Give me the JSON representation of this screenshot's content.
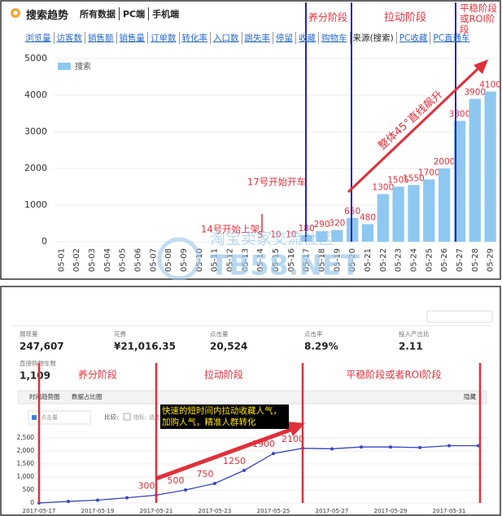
{
  "top_header": {
    "title": "搜索趋势",
    "links": [
      "所有数据",
      "PC端",
      "手机端"
    ]
  },
  "top_tabs": {
    "items": [
      "浏览量",
      "访客数",
      "销售额",
      "销售量",
      "订单数",
      "转化率",
      "入口数",
      "跳失率",
      "停留",
      "收藏",
      "购物车",
      "来源(搜索)",
      "PC收藏",
      "PC直通车"
    ],
    "selected": 11
  },
  "chart_data": [
    {
      "type": "bar",
      "categories": [
        "05-01",
        "05-02",
        "05-03",
        "05-04",
        "05-05",
        "05-06",
        "05-07",
        "05-08",
        "05-09",
        "05-10",
        "05-11",
        "05-12",
        "05-13",
        "05-14",
        "05-15",
        "05-16",
        "05-17",
        "05-18",
        "05-19",
        "05-20",
        "05-21",
        "05-22",
        "05-23",
        "05-24",
        "05-25",
        "05-26",
        "05-27",
        "05-28",
        "05-29"
      ],
      "series": [
        {
          "name": "搜索",
          "color": "#8ec8f0",
          "values": [
            0,
            0,
            0,
            0,
            0,
            0,
            0,
            0,
            0,
            0,
            0,
            0,
            0,
            5,
            10,
            10,
            180,
            290,
            320,
            650,
            480,
            1300,
            1505,
            1550,
            1700,
            2000,
            3300,
            3900,
            4100
          ]
        }
      ],
      "ylim": [
        0,
        5000
      ],
      "yticks": [
        0,
        1000,
        2000,
        3000,
        4000,
        5000
      ],
      "grid": true,
      "legend": "top-left",
      "phases": [
        "养分阶段",
        "拉动阶段",
        "平稳阶段或ROI阶段"
      ],
      "annotations": [
        "整体45°直线飙升",
        "17号开始开车",
        "14号开始上架"
      ]
    },
    {
      "type": "line",
      "categories": [
        "2017-05-17",
        null,
        "2017-05-19",
        null,
        "2017-05-21",
        null,
        "2017-05-23",
        null,
        "2017-05-25",
        null,
        "2017-05-27",
        null,
        "2017-05-29",
        null,
        "2017-05-31",
        null
      ],
      "series": [
        {
          "name": "点击量",
          "color": "#3b44c4",
          "values": [
            0,
            60,
            110,
            200,
            300,
            500,
            750,
            1250,
            1900,
            2100,
            2080,
            2150,
            2150,
            2130,
            2200,
            2200
          ],
          "value_labels": [
            null,
            null,
            null,
            null,
            "300",
            "500",
            "750",
            "1250",
            "1900",
            "2100",
            null,
            null,
            null,
            null,
            null,
            null
          ]
        }
      ],
      "ylim": [
        0,
        2500
      ],
      "yticks": [
        0,
        500,
        {
          "value": 1000,
          "label": "1,000"
        },
        {
          "value": 1500,
          "label": "1,500"
        },
        {
          "value": 2000,
          "label": "2,000"
        },
        {
          "value": 2500,
          "label": "2,500"
        }
      ],
      "grid": true,
      "phases": [
        "养分阶段",
        "拉动阶段",
        "平稳阶段或者ROI阶段"
      ],
      "callout": "快速的短时间内拉动收藏人气，加购人气，精准人群转化"
    }
  ],
  "stats": [
    {
      "label": "展现量",
      "value": "247,607"
    },
    {
      "label": "花费",
      "value": "¥21,016.35"
    },
    {
      "label": "点击量",
      "value": "20,524"
    },
    {
      "label": "点击率",
      "value": "8.29%"
    },
    {
      "label": "投入产出比",
      "value": "2.11"
    },
    {
      "label": "直接购物车数",
      "value": "1,109"
    }
  ],
  "toolbar": {
    "tabs": [
      "时间趋势图",
      "数据占比图"
    ],
    "hide": "隐藏",
    "compare": "比较:",
    "metric": "指标: 请选"
  },
  "watermark": [
    "淘宝卖家交流社区",
    "TB58.NET"
  ]
}
